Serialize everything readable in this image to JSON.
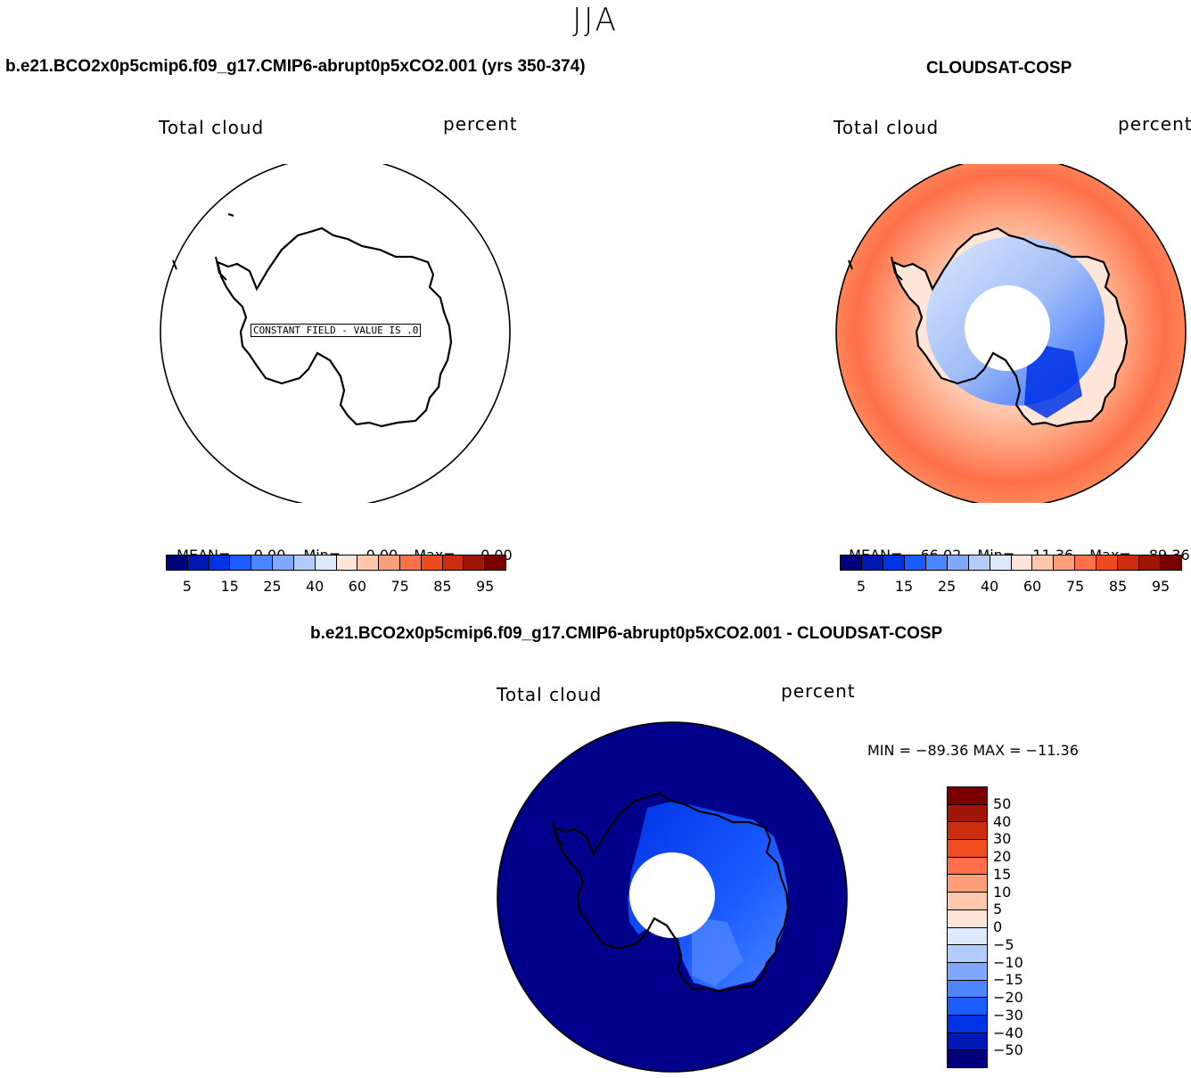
{
  "season": "JJA",
  "panel_left": {
    "case_title": "b.e21.BCO2x0p5cmip6.f09_g17.CMIP6-abrupt0p5xCO2.001 (yrs 350-374)",
    "variable": "Total cloud",
    "units": "percent",
    "constant_note": "CONSTANT FIELD - VALUE IS .0",
    "stats": {
      "mean_label": "MEAN=",
      "mean": "0.00",
      "min_label": "Min=",
      "min": "0.00",
      "max_label": "Max=",
      "max": "0.00"
    },
    "colorbar_ticks": [
      "5",
      "15",
      "25",
      "40",
      "60",
      "75",
      "85",
      "95"
    ]
  },
  "panel_right": {
    "case_title": "CLOUDSAT-COSP",
    "variable": "Total cloud",
    "units": "percent",
    "stats": {
      "mean_label": "MEAN=",
      "mean": "66.02",
      "min_label": "Min=",
      "min": "11.36",
      "max_label": "Max=",
      "max": "89.36"
    },
    "colorbar_ticks": [
      "5",
      "15",
      "25",
      "40",
      "60",
      "75",
      "85",
      "95"
    ]
  },
  "panel_diff": {
    "case_title": "b.e21.BCO2x0p5cmip6.f09_g17.CMIP6-abrupt0p5xCO2.001 - CLOUDSAT-COSP",
    "variable": "Total cloud",
    "units": "percent",
    "minmax": "MIN = −89.36  MAX = −11.36",
    "colorbar_ticks": [
      "50",
      "40",
      "30",
      "20",
      "15",
      "10",
      "5",
      "0",
      "−5",
      "−10",
      "−15",
      "−20",
      "−30",
      "−40",
      "−50"
    ]
  },
  "colors": {
    "abs_scale": [
      "#00007f",
      "#0019b5",
      "#0033e6",
      "#1a5cff",
      "#4d85ff",
      "#80a8ff",
      "#b3ccff",
      "#dde9ff",
      "#ffe6d9",
      "#ffc8ad",
      "#ff9f7a",
      "#ff704a",
      "#f04a1f",
      "#cc2d0f",
      "#a01505",
      "#7a0000"
    ],
    "diff_scale": [
      "#7a0000",
      "#a01505",
      "#cc2d0f",
      "#f04a1f",
      "#ff704a",
      "#ff9f7a",
      "#ffc8ad",
      "#ffe6d9",
      "#dde9ff",
      "#b3ccff",
      "#80a8ff",
      "#4d85ff",
      "#1a5cff",
      "#0033e6",
      "#0019b5",
      "#00007f"
    ],
    "ocean_right": "#ff8a5c",
    "land_right": "#9dbcfa",
    "diff_fill": "#00008b",
    "diff_land": "#1a4ef0"
  }
}
